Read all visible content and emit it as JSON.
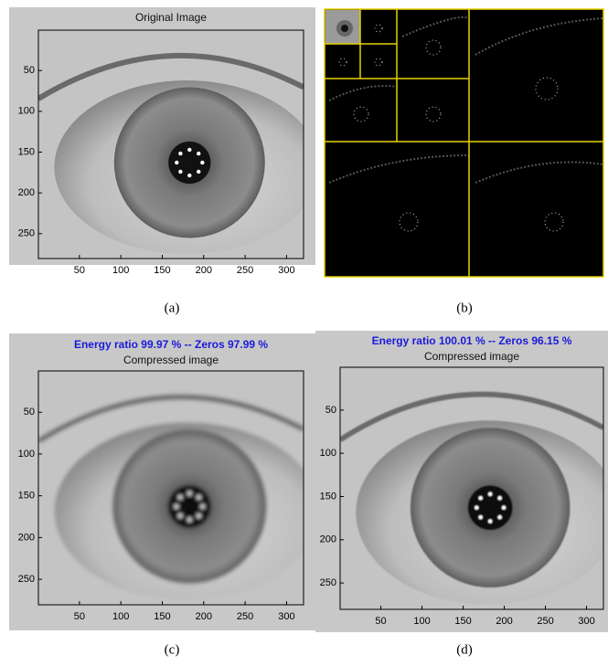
{
  "panels": [
    {
      "caption": "(a)",
      "title": "Original Image",
      "axes": {
        "xlim": [
          0.5,
          320.5
        ],
        "ylim": [
          0.5,
          280.5
        ],
        "xticks": [
          50,
          100,
          150,
          200,
          250,
          300
        ],
        "yticks": [
          50,
          100,
          150,
          200,
          250
        ]
      }
    },
    {
      "caption": "(b)"
    },
    {
      "caption": "(c)",
      "subtitle": "Energy ratio 99.97 % -- Zeros 97.99 %",
      "title": "Compressed image",
      "axes": {
        "xlim": [
          0.5,
          320.5
        ],
        "ylim": [
          0.5,
          280.5
        ],
        "xticks": [
          50,
          100,
          150,
          200,
          250,
          300
        ],
        "yticks": [
          50,
          100,
          150,
          200,
          250
        ]
      }
    },
    {
      "caption": "(d)",
      "subtitle": "Energy ratio 100.01 % -- Zeros 96.15 %",
      "title": "Compressed image",
      "axes": {
        "xlim": [
          0.5,
          320.5
        ],
        "ylim": [
          0.5,
          280.5
        ],
        "xticks": [
          50,
          100,
          150,
          200,
          250,
          300
        ],
        "yticks": [
          50,
          100,
          150,
          200,
          250
        ]
      }
    }
  ]
}
